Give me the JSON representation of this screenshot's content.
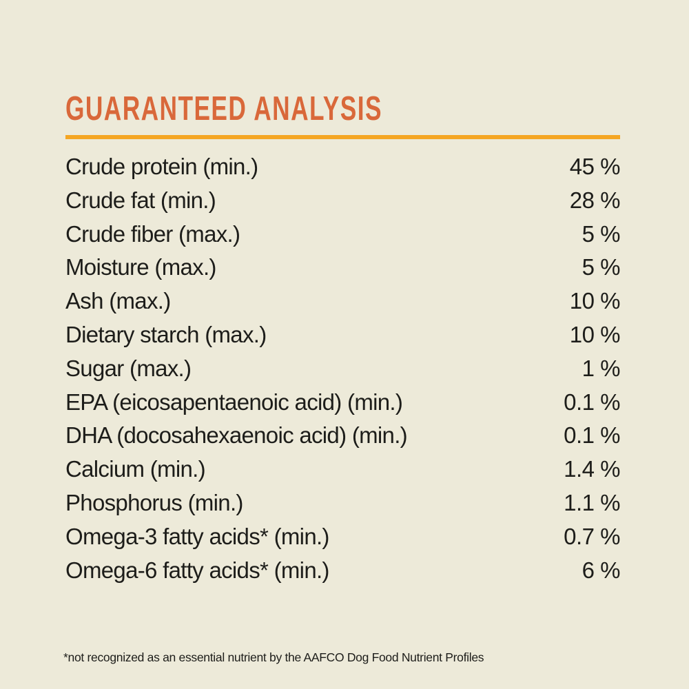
{
  "theme": {
    "background": "#edead9",
    "heading_color": "#d9683a",
    "rule_color": "#f5a623",
    "text_color": "#1d1d1a"
  },
  "header": {
    "title": "GUARANTEED ANALYSIS"
  },
  "analysis": {
    "rows": [
      {
        "label": "Crude protein (min.)",
        "value": "45 %"
      },
      {
        "label": "Crude fat (min.)",
        "value": "28 %"
      },
      {
        "label": "Crude fiber (max.)",
        "value": "5 %"
      },
      {
        "label": "Moisture (max.)",
        "value": "5 %"
      },
      {
        "label": "Ash (max.)",
        "value": "10 %"
      },
      {
        "label": "Dietary starch (max.)",
        "value": "10 %"
      },
      {
        "label": "Sugar (max.)",
        "value": "1 %"
      },
      {
        "label": "EPA (eicosapentaenoic acid) (min.)",
        "value": "0.1 %"
      },
      {
        "label": "DHA (docosahexaenoic acid) (min.)",
        "value": "0.1 %"
      },
      {
        "label": "Calcium (min.)",
        "value": "1.4 %"
      },
      {
        "label": "Phosphorus (min.)",
        "value": "1.1 %"
      },
      {
        "label": "Omega-3 fatty acids* (min.)",
        "value": "0.7 %"
      },
      {
        "label": "Omega-6 fatty acids* (min.)",
        "value": "6 %"
      }
    ]
  },
  "footnote": "*not recognized as an essential nutrient by the AAFCO Dog Food Nutrient Profiles"
}
